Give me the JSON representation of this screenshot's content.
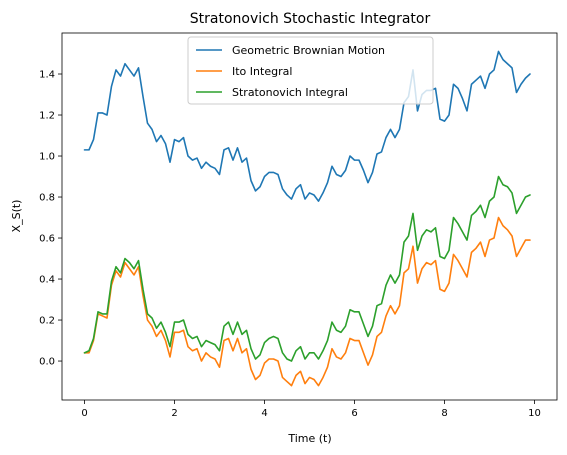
{
  "chart_data": {
    "type": "line",
    "title": "Stratonovich Stochastic Integrator",
    "xlabel": "Time (t)",
    "ylabel": "X_S(t)",
    "xlim": [
      -0.5,
      10.5
    ],
    "ylim": [
      -0.19,
      1.6
    ],
    "xticks": [
      0,
      2,
      4,
      6,
      8,
      10
    ],
    "yticks": [
      0.0,
      0.2,
      0.4,
      0.6,
      0.8,
      1.0,
      1.2,
      1.4
    ],
    "grid": false,
    "legend_position": "top-center",
    "x": [
      0.0,
      0.1,
      0.2,
      0.3,
      0.4,
      0.5,
      0.6,
      0.7,
      0.8,
      0.9,
      1.0,
      1.1,
      1.2,
      1.3,
      1.4,
      1.5,
      1.6,
      1.7,
      1.8,
      1.9,
      2.0,
      2.1,
      2.2,
      2.3,
      2.4,
      2.5,
      2.6,
      2.7,
      2.8,
      2.9,
      3.0,
      3.1,
      3.2,
      3.3,
      3.4,
      3.5,
      3.6,
      3.7,
      3.8,
      3.9,
      4.0,
      4.1,
      4.2,
      4.3,
      4.4,
      4.5,
      4.6,
      4.7,
      4.8,
      4.9,
      5.0,
      5.1,
      5.2,
      5.3,
      5.4,
      5.5,
      5.6,
      5.7,
      5.8,
      5.9,
      6.0,
      6.1,
      6.2,
      6.3,
      6.4,
      6.5,
      6.6,
      6.7,
      6.8,
      6.9,
      7.0,
      7.1,
      7.2,
      7.3,
      7.4,
      7.5,
      7.6,
      7.7,
      7.8,
      7.9,
      8.0,
      8.1,
      8.2,
      8.3,
      8.4,
      8.5,
      8.6,
      8.7,
      8.8,
      8.9,
      9.0,
      9.1,
      9.2,
      9.3,
      9.4,
      9.5,
      9.6,
      9.7,
      9.8,
      9.9
    ],
    "series": [
      {
        "name": "Geometric Brownian Motion",
        "color": "#1f77b4",
        "values": [
          1.03,
          1.03,
          1.08,
          1.21,
          1.21,
          1.2,
          1.34,
          1.42,
          1.39,
          1.45,
          1.42,
          1.39,
          1.43,
          1.29,
          1.16,
          1.13,
          1.07,
          1.1,
          1.06,
          0.97,
          1.08,
          1.07,
          1.09,
          1.0,
          0.98,
          0.99,
          0.94,
          0.97,
          0.95,
          0.94,
          0.91,
          1.03,
          1.04,
          0.98,
          1.04,
          0.97,
          0.99,
          0.88,
          0.83,
          0.85,
          0.9,
          0.92,
          0.92,
          0.91,
          0.84,
          0.81,
          0.79,
          0.84,
          0.86,
          0.79,
          0.82,
          0.81,
          0.78,
          0.82,
          0.87,
          0.95,
          0.91,
          0.9,
          0.93,
          1.0,
          0.98,
          0.98,
          0.93,
          0.87,
          0.92,
          1.01,
          1.02,
          1.09,
          1.13,
          1.09,
          1.13,
          1.26,
          1.29,
          1.42,
          1.22,
          1.3,
          1.32,
          1.32,
          1.33,
          1.18,
          1.17,
          1.2,
          1.35,
          1.33,
          1.28,
          1.22,
          1.35,
          1.37,
          1.39,
          1.33,
          1.4,
          1.42,
          1.51,
          1.47,
          1.45,
          1.43,
          1.31,
          1.35,
          1.38,
          1.4
        ]
      },
      {
        "name": "Ito Integral",
        "color": "#ff7f0e",
        "values": [
          0.04,
          0.04,
          0.1,
          0.23,
          0.22,
          0.21,
          0.37,
          0.44,
          0.41,
          0.48,
          0.45,
          0.42,
          0.46,
          0.32,
          0.2,
          0.17,
          0.12,
          0.15,
          0.1,
          0.02,
          0.14,
          0.14,
          0.15,
          0.07,
          0.05,
          0.06,
          0.0,
          0.04,
          0.02,
          0.01,
          -0.03,
          0.1,
          0.11,
          0.05,
          0.11,
          0.04,
          0.06,
          -0.04,
          -0.09,
          -0.07,
          -0.01,
          0.01,
          0.01,
          0.0,
          -0.08,
          -0.1,
          -0.12,
          -0.07,
          -0.05,
          -0.11,
          -0.08,
          -0.09,
          -0.12,
          -0.08,
          -0.03,
          0.06,
          0.02,
          0.01,
          0.04,
          0.11,
          0.1,
          0.1,
          0.04,
          -0.02,
          0.03,
          0.12,
          0.14,
          0.22,
          0.27,
          0.23,
          0.27,
          0.43,
          0.45,
          0.56,
          0.38,
          0.45,
          0.48,
          0.47,
          0.49,
          0.35,
          0.34,
          0.38,
          0.52,
          0.49,
          0.45,
          0.41,
          0.53,
          0.55,
          0.58,
          0.51,
          0.59,
          0.6,
          0.7,
          0.66,
          0.64,
          0.61,
          0.51,
          0.55,
          0.59,
          0.59
        ]
      },
      {
        "name": "Stratonovich Integral",
        "color": "#2ca02c",
        "values": [
          0.04,
          0.05,
          0.11,
          0.24,
          0.23,
          0.23,
          0.39,
          0.46,
          0.43,
          0.5,
          0.48,
          0.45,
          0.49,
          0.35,
          0.23,
          0.21,
          0.16,
          0.19,
          0.14,
          0.07,
          0.19,
          0.19,
          0.2,
          0.13,
          0.11,
          0.12,
          0.07,
          0.1,
          0.09,
          0.08,
          0.05,
          0.17,
          0.19,
          0.13,
          0.19,
          0.13,
          0.15,
          0.06,
          0.01,
          0.03,
          0.09,
          0.11,
          0.12,
          0.11,
          0.04,
          0.01,
          0.0,
          0.05,
          0.07,
          0.01,
          0.04,
          0.04,
          0.01,
          0.05,
          0.1,
          0.19,
          0.15,
          0.14,
          0.17,
          0.25,
          0.24,
          0.24,
          0.18,
          0.12,
          0.17,
          0.27,
          0.28,
          0.37,
          0.42,
          0.38,
          0.42,
          0.58,
          0.61,
          0.72,
          0.54,
          0.61,
          0.64,
          0.63,
          0.65,
          0.51,
          0.5,
          0.54,
          0.7,
          0.67,
          0.63,
          0.59,
          0.71,
          0.73,
          0.76,
          0.7,
          0.78,
          0.8,
          0.9,
          0.86,
          0.85,
          0.82,
          0.72,
          0.76,
          0.8,
          0.81
        ]
      }
    ]
  }
}
